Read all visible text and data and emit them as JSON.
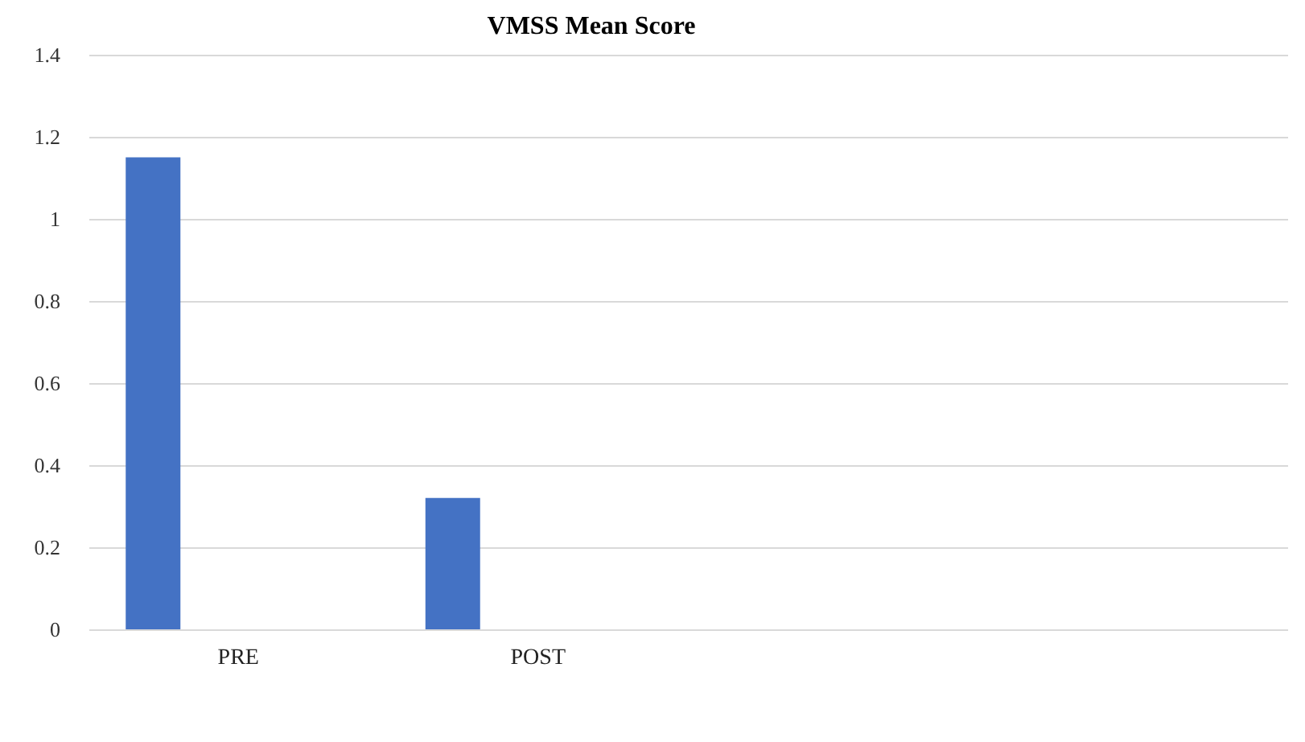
{
  "chart_data": {
    "type": "bar",
    "title": "VMSS Mean Score",
    "categories": [
      "PRE",
      "POST",
      null,
      null
    ],
    "series": [
      {
        "color": "#4472c4",
        "values": [
          1.15,
          0.32,
          null,
          null
        ]
      }
    ],
    "ylim": [
      0,
      1.4
    ],
    "yticks": [
      0,
      0.2,
      0.4,
      0.6,
      0.8,
      1,
      1.2,
      1.4
    ],
    "grid": "y"
  }
}
